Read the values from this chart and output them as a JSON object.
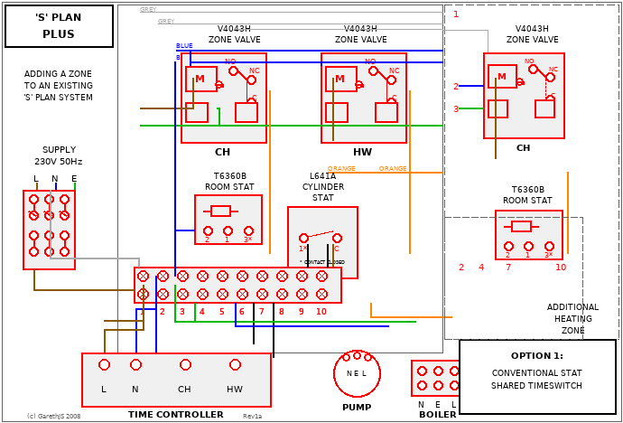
{
  "bg_color": "#f0f0f0",
  "wire_grey": "#aaaaaa",
  "wire_blue": "#0000ff",
  "wire_green": "#00bb00",
  "wire_orange": "#ff8800",
  "wire_brown": "#8B5A00",
  "wire_black": "#111111",
  "red": "#ff0000",
  "dark": "#222222"
}
